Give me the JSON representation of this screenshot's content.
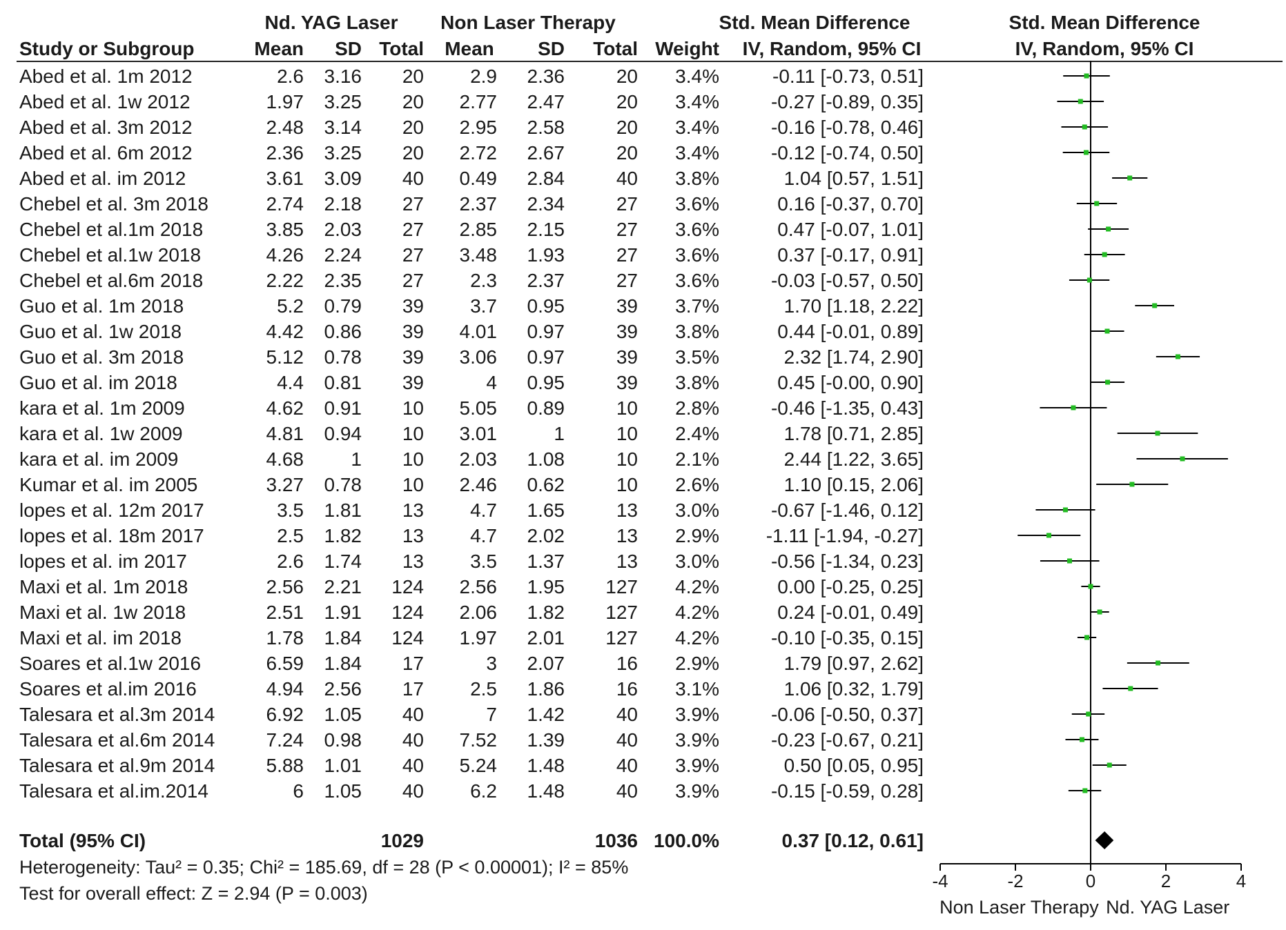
{
  "headers": {
    "group1": "Nd. YAG Laser",
    "group2": "Non Laser Therapy",
    "smd_table": "Std. Mean Difference",
    "smd_plot": "Std. Mean Difference",
    "study": "Study or Subgroup",
    "mean1": "Mean",
    "sd1": "SD",
    "total1": "Total",
    "mean2": "Mean",
    "sd2": "SD",
    "total2": "Total",
    "weight": "Weight",
    "ci_table": "IV, Random, 95% CI",
    "ci_plot": "IV, Random, 95% CI"
  },
  "rows": [
    {
      "study": "Abed et al. 1m  2012",
      "mean1": "2.6",
      "sd1": "3.16",
      "n1": "20",
      "mean2": "2.9",
      "sd2": "2.36",
      "n2": "20",
      "weight": "3.4%",
      "smd": "-0.11 [-0.73, 0.51]"
    },
    {
      "study": "Abed et al. 1w 2012",
      "mean1": "1.97",
      "sd1": "3.25",
      "n1": "20",
      "mean2": "2.77",
      "sd2": "2.47",
      "n2": "20",
      "weight": "3.4%",
      "smd": "-0.27 [-0.89, 0.35]"
    },
    {
      "study": "Abed et al. 3m 2012",
      "mean1": "2.48",
      "sd1": "3.14",
      "n1": "20",
      "mean2": "2.95",
      "sd2": "2.58",
      "n2": "20",
      "weight": "3.4%",
      "smd": "-0.16 [-0.78, 0.46]"
    },
    {
      "study": "Abed et al. 6m 2012",
      "mean1": "2.36",
      "sd1": "3.25",
      "n1": "20",
      "mean2": "2.72",
      "sd2": "2.67",
      "n2": "20",
      "weight": "3.4%",
      "smd": "-0.12 [-0.74, 0.50]"
    },
    {
      "study": "Abed et al. im  2012",
      "mean1": "3.61",
      "sd1": "3.09",
      "n1": "40",
      "mean2": "0.49",
      "sd2": "2.84",
      "n2": "40",
      "weight": "3.8%",
      "smd": "1.04 [0.57, 1.51]"
    },
    {
      "study": "Chebel et al. 3m 2018",
      "mean1": "2.74",
      "sd1": "2.18",
      "n1": "27",
      "mean2": "2.37",
      "sd2": "2.34",
      "n2": "27",
      "weight": "3.6%",
      "smd": "0.16 [-0.37, 0.70]"
    },
    {
      "study": "Chebel et al.1m 2018",
      "mean1": "3.85",
      "sd1": "2.03",
      "n1": "27",
      "mean2": "2.85",
      "sd2": "2.15",
      "n2": "27",
      "weight": "3.6%",
      "smd": "0.47 [-0.07, 1.01]"
    },
    {
      "study": "Chebel et al.1w  2018",
      "mean1": "4.26",
      "sd1": "2.24",
      "n1": "27",
      "mean2": "3.48",
      "sd2": "1.93",
      "n2": "27",
      "weight": "3.6%",
      "smd": "0.37 [-0.17, 0.91]"
    },
    {
      "study": "Chebel et al.6m  2018",
      "mean1": "2.22",
      "sd1": "2.35",
      "n1": "27",
      "mean2": "2.3",
      "sd2": "2.37",
      "n2": "27",
      "weight": "3.6%",
      "smd": "-0.03 [-0.57, 0.50]"
    },
    {
      "study": "Guo et al. 1m 2018",
      "mean1": "5.2",
      "sd1": "0.79",
      "n1": "39",
      "mean2": "3.7",
      "sd2": "0.95",
      "n2": "39",
      "weight": "3.7%",
      "smd": "1.70 [1.18, 2.22]"
    },
    {
      "study": "Guo et al. 1w 2018",
      "mean1": "4.42",
      "sd1": "0.86",
      "n1": "39",
      "mean2": "4.01",
      "sd2": "0.97",
      "n2": "39",
      "weight": "3.8%",
      "smd": "0.44 [-0.01, 0.89]"
    },
    {
      "study": "Guo et al. 3m 2018",
      "mean1": "5.12",
      "sd1": "0.78",
      "n1": "39",
      "mean2": "3.06",
      "sd2": "0.97",
      "n2": "39",
      "weight": "3.5%",
      "smd": "2.32 [1.74, 2.90]"
    },
    {
      "study": "Guo et al. im 2018",
      "mean1": "4.4",
      "sd1": "0.81",
      "n1": "39",
      "mean2": "4",
      "sd2": "0.95",
      "n2": "39",
      "weight": "3.8%",
      "smd": "0.45 [-0.00, 0.90]"
    },
    {
      "study": "kara et al. 1m 2009",
      "mean1": "4.62",
      "sd1": "0.91",
      "n1": "10",
      "mean2": "5.05",
      "sd2": "0.89",
      "n2": "10",
      "weight": "2.8%",
      "smd": "-0.46 [-1.35, 0.43]"
    },
    {
      "study": "kara et al. 1w 2009",
      "mean1": "4.81",
      "sd1": "0.94",
      "n1": "10",
      "mean2": "3.01",
      "sd2": "1",
      "n2": "10",
      "weight": "2.4%",
      "smd": "1.78 [0.71, 2.85]"
    },
    {
      "study": "kara et al. im 2009",
      "mean1": "4.68",
      "sd1": "1",
      "n1": "10",
      "mean2": "2.03",
      "sd2": "1.08",
      "n2": "10",
      "weight": "2.1%",
      "smd": "2.44 [1.22, 3.65]"
    },
    {
      "study": "Kumar et al. im 2005",
      "mean1": "3.27",
      "sd1": "0.78",
      "n1": "10",
      "mean2": "2.46",
      "sd2": "0.62",
      "n2": "10",
      "weight": "2.6%",
      "smd": "1.10 [0.15, 2.06]"
    },
    {
      "study": "lopes et al. 12m  2017",
      "mean1": "3.5",
      "sd1": "1.81",
      "n1": "13",
      "mean2": "4.7",
      "sd2": "1.65",
      "n2": "13",
      "weight": "3.0%",
      "smd": "-0.67 [-1.46, 0.12]"
    },
    {
      "study": "lopes et al. 18m  2017",
      "mean1": "2.5",
      "sd1": "1.82",
      "n1": "13",
      "mean2": "4.7",
      "sd2": "2.02",
      "n2": "13",
      "weight": "2.9%",
      "smd": "-1.11 [-1.94, -0.27]"
    },
    {
      "study": "lopes et al. im  2017",
      "mean1": "2.6",
      "sd1": "1.74",
      "n1": "13",
      "mean2": "3.5",
      "sd2": "1.37",
      "n2": "13",
      "weight": "3.0%",
      "smd": "-0.56 [-1.34, 0.23]"
    },
    {
      "study": "Maxi et al. 1m 2018",
      "mean1": "2.56",
      "sd1": "2.21",
      "n1": "124",
      "mean2": "2.56",
      "sd2": "1.95",
      "n2": "127",
      "weight": "4.2%",
      "smd": "0.00 [-0.25, 0.25]"
    },
    {
      "study": "Maxi et al. 1w 2018",
      "mean1": "2.51",
      "sd1": "1.91",
      "n1": "124",
      "mean2": "2.06",
      "sd2": "1.82",
      "n2": "127",
      "weight": "4.2%",
      "smd": "0.24 [-0.01, 0.49]"
    },
    {
      "study": "Maxi et al. im 2018",
      "mean1": "1.78",
      "sd1": "1.84",
      "n1": "124",
      "mean2": "1.97",
      "sd2": "2.01",
      "n2": "127",
      "weight": "4.2%",
      "smd": "-0.10 [-0.35, 0.15]"
    },
    {
      "study": "Soares et al.1w 2016",
      "mean1": "6.59",
      "sd1": "1.84",
      "n1": "17",
      "mean2": "3",
      "sd2": "2.07",
      "n2": "16",
      "weight": "2.9%",
      "smd": "1.79 [0.97, 2.62]"
    },
    {
      "study": "Soares et al.im 2016",
      "mean1": "4.94",
      "sd1": "2.56",
      "n1": "17",
      "mean2": "2.5",
      "sd2": "1.86",
      "n2": "16",
      "weight": "3.1%",
      "smd": "1.06 [0.32, 1.79]"
    },
    {
      "study": "Talesara et al.3m 2014",
      "mean1": "6.92",
      "sd1": "1.05",
      "n1": "40",
      "mean2": "7",
      "sd2": "1.42",
      "n2": "40",
      "weight": "3.9%",
      "smd": "-0.06 [-0.50, 0.37]"
    },
    {
      "study": "Talesara et al.6m 2014",
      "mean1": "7.24",
      "sd1": "0.98",
      "n1": "40",
      "mean2": "7.52",
      "sd2": "1.39",
      "n2": "40",
      "weight": "3.9%",
      "smd": "-0.23 [-0.67, 0.21]"
    },
    {
      "study": "Talesara et al.9m 2014",
      "mean1": "5.88",
      "sd1": "1.01",
      "n1": "40",
      "mean2": "5.24",
      "sd2": "1.48",
      "n2": "40",
      "weight": "3.9%",
      "smd": "0.50 [0.05, 0.95]"
    },
    {
      "study": "Talesara et al.im.2014",
      "mean1": "6",
      "sd1": "1.05",
      "n1": "40",
      "mean2": "6.2",
      "sd2": "1.48",
      "n2": "40",
      "weight": "3.9%",
      "smd": "-0.15 [-0.59, 0.28]"
    }
  ],
  "total": {
    "label": "Total (95% CI)",
    "n1": "1029",
    "n2": "1036",
    "weight": "100.0%",
    "smd": "0.37 [0.12, 0.61]"
  },
  "heterogeneity": "Heterogeneity: Tau² = 0.35; Chi² = 185.69, df = 28 (P < 0.00001); I² = 85%",
  "overall_effect": "Test for overall effect: Z = 2.94 (P = 0.003)",
  "colors": {
    "point": "#22bb22",
    "line": "#000000",
    "diamond": "#000000"
  },
  "chart_data": {
    "type": "forest",
    "xlim": [
      -4,
      4
    ],
    "xticks": [
      -4,
      -2,
      0,
      2,
      4
    ],
    "xtick_labels": [
      "-4",
      "-2",
      "0",
      "2",
      "4"
    ],
    "xlabel_left": "Non Laser Therapy",
    "xlabel_right": "Nd. YAG Laser",
    "estimates": [
      {
        "smd": -0.11,
        "lo": -0.73,
        "hi": 0.51
      },
      {
        "smd": -0.27,
        "lo": -0.89,
        "hi": 0.35
      },
      {
        "smd": -0.16,
        "lo": -0.78,
        "hi": 0.46
      },
      {
        "smd": -0.12,
        "lo": -0.74,
        "hi": 0.5
      },
      {
        "smd": 1.04,
        "lo": 0.57,
        "hi": 1.51
      },
      {
        "smd": 0.16,
        "lo": -0.37,
        "hi": 0.7
      },
      {
        "smd": 0.47,
        "lo": -0.07,
        "hi": 1.01
      },
      {
        "smd": 0.37,
        "lo": -0.17,
        "hi": 0.91
      },
      {
        "smd": -0.03,
        "lo": -0.57,
        "hi": 0.5
      },
      {
        "smd": 1.7,
        "lo": 1.18,
        "hi": 2.22
      },
      {
        "smd": 0.44,
        "lo": -0.01,
        "hi": 0.89
      },
      {
        "smd": 2.32,
        "lo": 1.74,
        "hi": 2.9
      },
      {
        "smd": 0.45,
        "lo": -0.0,
        "hi": 0.9
      },
      {
        "smd": -0.46,
        "lo": -1.35,
        "hi": 0.43
      },
      {
        "smd": 1.78,
        "lo": 0.71,
        "hi": 2.85
      },
      {
        "smd": 2.44,
        "lo": 1.22,
        "hi": 3.65
      },
      {
        "smd": 1.1,
        "lo": 0.15,
        "hi": 2.06
      },
      {
        "smd": -0.67,
        "lo": -1.46,
        "hi": 0.12
      },
      {
        "smd": -1.11,
        "lo": -1.94,
        "hi": -0.27
      },
      {
        "smd": -0.56,
        "lo": -1.34,
        "hi": 0.23
      },
      {
        "smd": 0.0,
        "lo": -0.25,
        "hi": 0.25
      },
      {
        "smd": 0.24,
        "lo": -0.01,
        "hi": 0.49
      },
      {
        "smd": -0.1,
        "lo": -0.35,
        "hi": 0.15
      },
      {
        "smd": 1.79,
        "lo": 0.97,
        "hi": 2.62
      },
      {
        "smd": 1.06,
        "lo": 0.32,
        "hi": 1.79
      },
      {
        "smd": -0.06,
        "lo": -0.5,
        "hi": 0.37
      },
      {
        "smd": -0.23,
        "lo": -0.67,
        "hi": 0.21
      },
      {
        "smd": 0.5,
        "lo": 0.05,
        "hi": 0.95
      },
      {
        "smd": -0.15,
        "lo": -0.59,
        "hi": 0.28
      }
    ],
    "pooled": {
      "smd": 0.37,
      "lo": 0.12,
      "hi": 0.61
    }
  }
}
